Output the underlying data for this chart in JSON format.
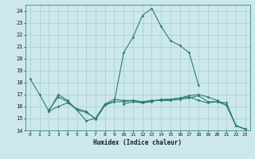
{
  "xlabel": "Humidex (Indice chaleur)",
  "background_color": "#cce8ee",
  "grid_color": "#aacccc",
  "line_color": "#2e7d6e",
  "xlim": [
    -0.5,
    23.5
  ],
  "ylim": [
    14,
    24.5
  ],
  "yticks": [
    14,
    15,
    16,
    17,
    18,
    19,
    20,
    21,
    22,
    23,
    24
  ],
  "xticks": [
    0,
    1,
    2,
    3,
    4,
    5,
    6,
    7,
    8,
    9,
    10,
    11,
    12,
    13,
    14,
    15,
    16,
    17,
    18,
    19,
    20,
    21,
    22,
    23
  ],
  "series": [
    {
      "x": [
        0,
        1,
        2,
        3,
        4,
        5,
        6,
        7,
        8,
        9,
        10,
        11,
        12,
        13,
        14,
        15,
        16,
        17,
        18
      ],
      "y": [
        18.3,
        17.0,
        15.6,
        17.0,
        16.5,
        15.7,
        14.8,
        15.0,
        16.2,
        16.4,
        20.5,
        21.8,
        23.6,
        24.2,
        22.7,
        21.5,
        21.1,
        20.5,
        17.8
      ]
    },
    {
      "x": [
        2,
        3,
        4,
        5,
        6,
        7,
        8,
        9,
        10,
        11,
        12,
        13,
        14,
        15,
        16,
        17,
        18,
        19,
        20,
        21,
        22,
        23
      ],
      "y": [
        15.6,
        16.0,
        16.3,
        15.8,
        15.6,
        14.9,
        16.1,
        16.4,
        16.4,
        16.5,
        16.4,
        16.5,
        16.5,
        16.6,
        16.7,
        16.9,
        17.0,
        16.8,
        16.5,
        16.1,
        14.4,
        14.1
      ]
    },
    {
      "x": [
        2,
        3,
        4,
        5,
        6,
        7,
        8,
        9,
        10,
        11,
        12,
        13,
        14,
        15,
        16,
        17,
        18,
        19,
        20,
        21,
        22,
        23
      ],
      "y": [
        15.7,
        16.8,
        16.4,
        15.7,
        15.5,
        15.0,
        16.2,
        16.6,
        16.5,
        16.5,
        16.3,
        16.4,
        16.6,
        16.6,
        16.7,
        16.8,
        16.5,
        16.3,
        16.4,
        16.1,
        14.4,
        14.1
      ]
    },
    {
      "x": [
        10,
        11,
        12,
        13,
        14,
        15,
        16,
        17,
        18,
        19,
        20,
        21,
        22,
        23
      ],
      "y": [
        16.2,
        16.4,
        16.3,
        16.5,
        16.5,
        16.5,
        16.6,
        16.7,
        16.9,
        16.4,
        16.4,
        16.3,
        14.4,
        14.1
      ]
    }
  ]
}
